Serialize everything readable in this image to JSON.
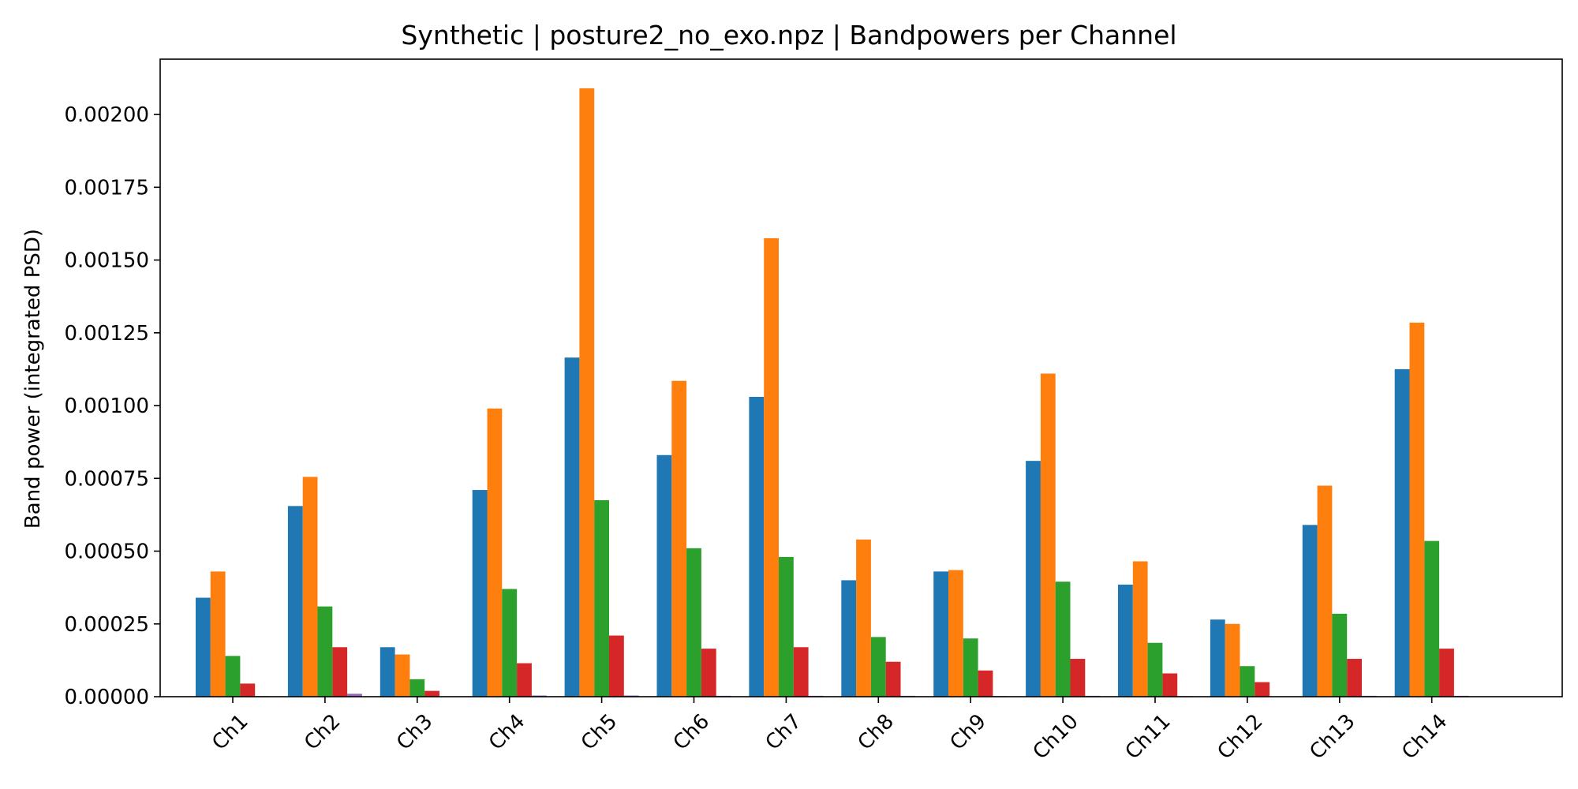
{
  "chart_data": {
    "type": "bar",
    "title": "Synthetic | posture2_no_exo.npz | Bandpowers per Channel",
    "xlabel": "",
    "ylabel": "Band power (integrated PSD)",
    "ylim": [
      0,
      0.00219
    ],
    "yticks": [
      "0.00000",
      "0.00025",
      "0.00050",
      "0.00075",
      "0.00100",
      "0.00125",
      "0.00150",
      "0.00175",
      "0.00200"
    ],
    "ytick_values": [
      0,
      0.00025,
      0.0005,
      0.00075,
      0.001,
      0.00125,
      0.0015,
      0.00175,
      0.002
    ],
    "grid": false,
    "legend": "none",
    "categories": [
      "Ch1",
      "Ch2",
      "Ch3",
      "Ch4",
      "Ch5",
      "Ch6",
      "Ch7",
      "Ch8",
      "Ch9",
      "Ch10",
      "Ch11",
      "Ch12",
      "Ch13",
      "Ch14"
    ],
    "series": [
      {
        "color": "#1f77b4",
        "values": [
          0.00034,
          0.000655,
          0.00017,
          0.00071,
          0.001165,
          0.00083,
          0.00103,
          0.0004,
          0.00043,
          0.00081,
          0.000385,
          0.000265,
          0.00059,
          0.001125
        ]
      },
      {
        "color": "#ff7f0e",
        "values": [
          0.00043,
          0.000755,
          0.000145,
          0.00099,
          0.00209,
          0.001085,
          0.001575,
          0.00054,
          0.000435,
          0.00111,
          0.000465,
          0.00025,
          0.000725,
          0.001285
        ]
      },
      {
        "color": "#2ca02c",
        "values": [
          0.00014,
          0.00031,
          6e-05,
          0.00037,
          0.000675,
          0.00051,
          0.00048,
          0.000205,
          0.0002,
          0.000395,
          0.000185,
          0.000105,
          0.000285,
          0.000535
        ]
      },
      {
        "color": "#d62728",
        "values": [
          4.5e-05,
          0.00017,
          2e-05,
          0.000115,
          0.00021,
          0.000165,
          0.00017,
          0.00012,
          9e-05,
          0.00013,
          8e-05,
          5e-05,
          0.00013,
          0.000165
        ]
      },
      {
        "color": "#9467bd",
        "values": [
          2e-06,
          1e-05,
          1e-06,
          4e-06,
          4e-06,
          3e-06,
          3e-06,
          3e-06,
          2e-06,
          3e-06,
          2e-06,
          1e-06,
          3e-06,
          3e-06
        ]
      }
    ]
  }
}
